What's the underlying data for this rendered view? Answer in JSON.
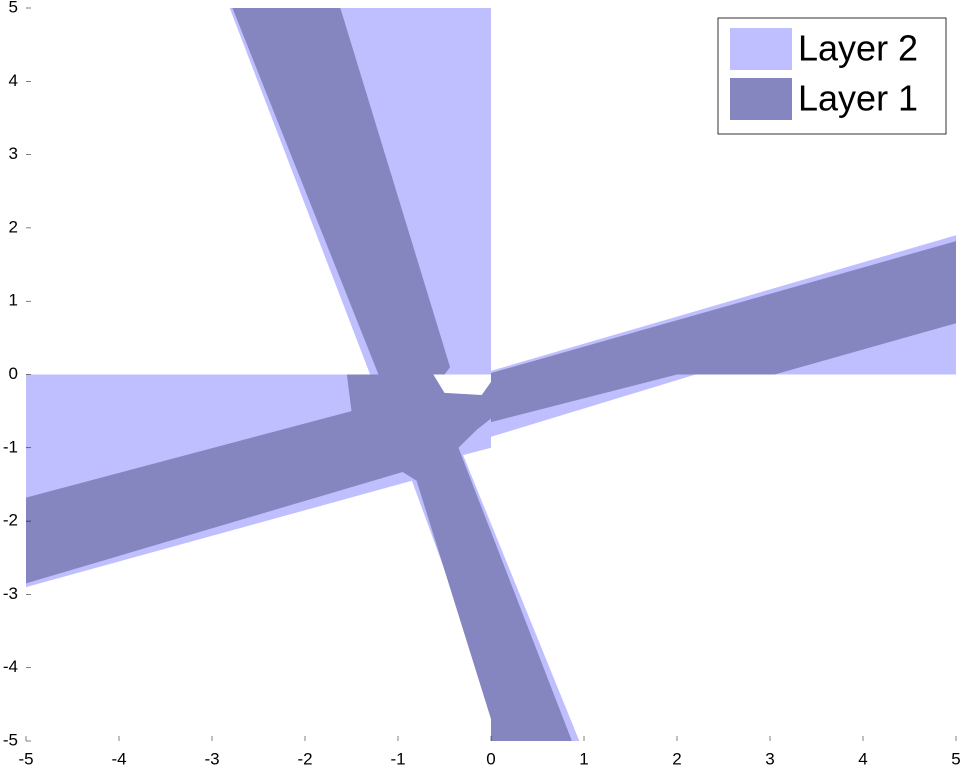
{
  "chart_data": {
    "type": "region",
    "xlim": [
      -5,
      5
    ],
    "ylim": [
      -5,
      5
    ],
    "xticks": [
      -5,
      -4,
      -3,
      -2,
      -1,
      0,
      1,
      2,
      3,
      4,
      5
    ],
    "yticks": [
      -5,
      -4,
      -3,
      -2,
      -1,
      0,
      1,
      2,
      3,
      4,
      5
    ],
    "legend": "upper right",
    "series": [
      {
        "name": "Layer 2",
        "color": "#bfbfff",
        "polygons": [
          [
            [
              -2.81,
              5
            ],
            [
              0,
              5
            ],
            [
              0,
              0
            ],
            [
              -1.3,
              0
            ]
          ],
          [
            [
              -5,
              0
            ],
            [
              -1.45,
              0
            ],
            [
              -0.5,
              -0.35
            ],
            [
              0,
              -0.4
            ],
            [
              0,
              -1.0
            ],
            [
              -0.3,
              -1.1
            ],
            [
              0.95,
              -5
            ],
            [
              0,
              -5
            ],
            [
              0,
              -4.4
            ],
            [
              -0.85,
              -1.45
            ],
            [
              -5,
              -2.9
            ]
          ],
          [
            [
              0,
              0.05
            ],
            [
              5,
              1.9
            ],
            [
              5,
              0
            ],
            [
              2.2,
              0
            ],
            [
              0,
              -0.85
            ]
          ]
        ]
      },
      {
        "name": "Layer 1",
        "color": "#8585bf",
        "polygons": [
          [
            [
              -2.78,
              5
            ],
            [
              -1.62,
              5
            ],
            [
              -0.44,
              0.1
            ],
            [
              -0.5,
              0
            ],
            [
              -1.21,
              0
            ]
          ],
          [
            [
              -5,
              -1.68
            ],
            [
              -1.5,
              -0.5
            ],
            [
              -1.55,
              0
            ],
            [
              -0.62,
              0
            ],
            [
              -0.5,
              -0.25
            ],
            [
              -0.1,
              -0.28
            ],
            [
              0,
              -0.1
            ],
            [
              0,
              -0.6
            ],
            [
              -0.15,
              -0.75
            ],
            [
              -0.35,
              -1.0
            ],
            [
              0.87,
              -5
            ],
            [
              0,
              -5
            ],
            [
              0,
              -4.7
            ],
            [
              -0.8,
              -1.45
            ],
            [
              -0.95,
              -1.33
            ],
            [
              -5,
              -2.85
            ]
          ],
          [
            [
              0,
              0.02
            ],
            [
              5,
              1.82
            ],
            [
              5,
              0.7
            ],
            [
              3.05,
              0
            ],
            [
              2.0,
              0
            ],
            [
              0,
              -0.65
            ]
          ]
        ]
      }
    ]
  }
}
